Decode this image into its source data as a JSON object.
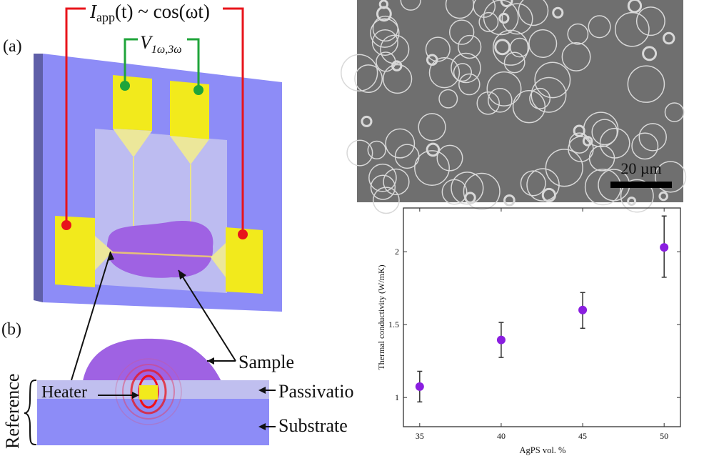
{
  "panel_a": {
    "label": "(a)",
    "current_label_main": "I",
    "current_label_sub": "app",
    "current_label_rest": "(t) ~ cos(ωt)",
    "voltage_label_main": "V",
    "voltage_label_sub": "1ω,3ω"
  },
  "panel_b": {
    "label": "(b)",
    "sample": "Sample",
    "heater": "Heater",
    "passivation": "Passivatio",
    "substrate": "Substrate",
    "reference": "Reference"
  },
  "micrograph": {
    "scale_bar_label": "20 µm"
  },
  "colors": {
    "substrate": "#8d8cf7",
    "passivation": "#c0bfef",
    "pad": "#f2ea1c",
    "sample": "#9f62e3",
    "current_wire": "#e8141b",
    "voltage_wire": "#1fa43a",
    "marker": "#8a1ee0"
  },
  "chart_data": {
    "type": "scatter",
    "title": "",
    "xlabel": "AgPS vol. %",
    "ylabel": "Thermal conductivity (W/mK)",
    "x": [
      35,
      40,
      45,
      50
    ],
    "y": [
      1.075,
      1.395,
      1.6,
      2.03
    ],
    "y_err_low": [
      0.97,
      1.275,
      1.475,
      1.825
    ],
    "y_err_high": [
      1.18,
      1.515,
      1.72,
      2.245
    ],
    "xlim": [
      34,
      51
    ],
    "ylim": [
      0.8,
      2.3
    ],
    "x_ticks": [
      "35",
      "40",
      "45",
      "50"
    ],
    "x_tick_values": [
      35,
      40,
      45,
      50
    ],
    "y_ticks": [
      "1",
      "1.5",
      "2"
    ],
    "y_tick_values": [
      1,
      1.5,
      2
    ],
    "grid": false
  }
}
